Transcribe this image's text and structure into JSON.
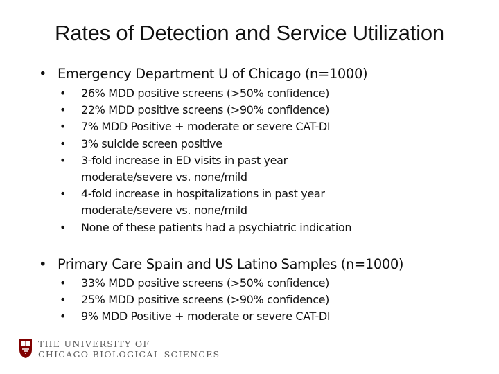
{
  "title": "Rates of Detection and Service Utilization",
  "sections": [
    {
      "heading": "Emergency Department U of Chicago (n=1000)",
      "bullets": [
        "26% MDD positive screens (>50% confidence)",
        "22% MDD positive screens (>90% confidence)",
        "7% MDD Positive + moderate or severe CAT-DI",
        "3% suicide screen positive",
        "3-fold increase in ED visits in past year moderate/severe vs. none/mild",
        "4-fold increase in hospitalizations in past year moderate/severe vs. none/mild",
        "None of these patients had a psychiatric indication"
      ]
    },
    {
      "heading": "Primary Care Spain and US Latino Samples (n=1000)",
      "bullets": [
        "33% MDD positive screens (>50% confidence)",
        "25% MDD positive screens (>90% confidence)",
        "9% MDD Positive + moderate or severe CAT-DI"
      ]
    }
  ],
  "footer": {
    "line1": "THE UNIVERSITY OF",
    "line2": "CHICAGO BIOLOGICAL SCIENCES",
    "crest_icon": "university-crest-icon",
    "brand_color": "#800000"
  }
}
